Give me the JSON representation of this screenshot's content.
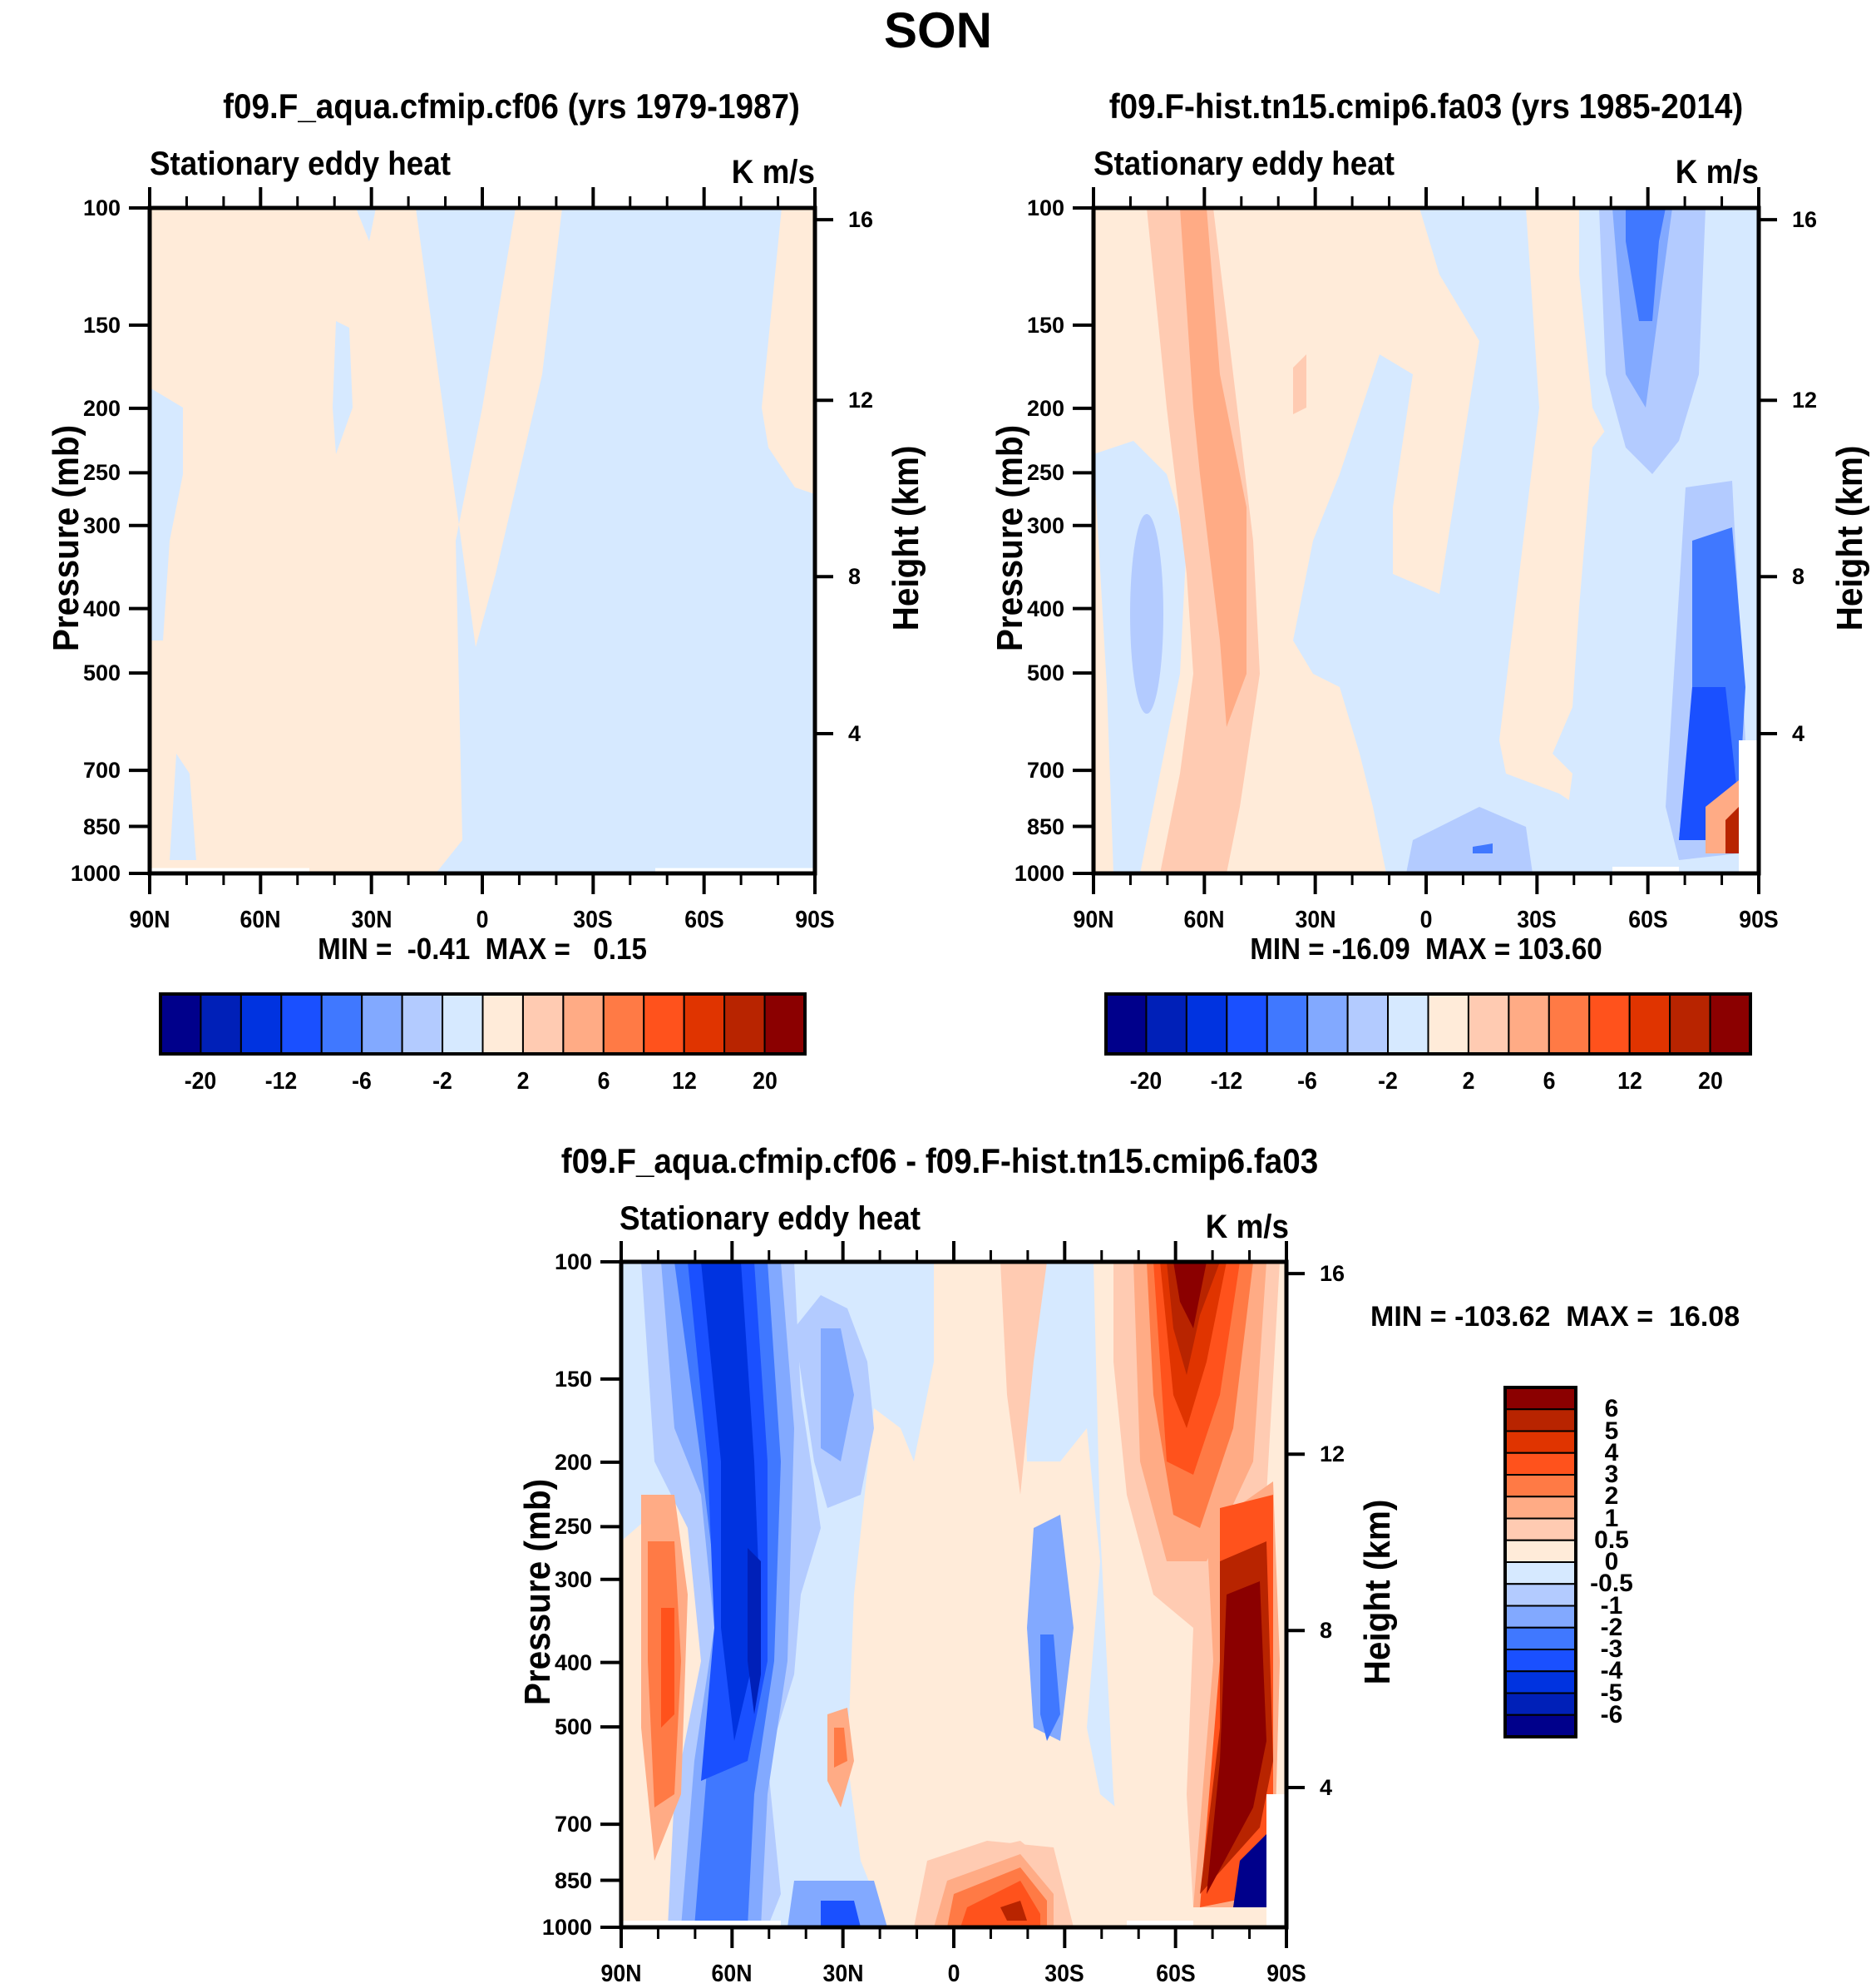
{
  "figure_title": "SON",
  "panels": [
    {
      "id": "control",
      "title": "f09.F_aqua.cfmip.cf06 (yrs 1979-1987)",
      "left_string": "Stationary eddy heat",
      "right_string": "K m/s",
      "min_max": "MIN =  -0.41  MAX =   0.15"
    },
    {
      "id": "reference",
      "title": "f09.F-hist.tn15.cmip6.fa03 (yrs 1985-2014)",
      "left_string": "Stationary eddy heat",
      "right_string": "K m/s",
      "min_max": "MIN = -16.09  MAX = 103.60"
    },
    {
      "id": "difference",
      "title": "f09.F_aqua.cfmip.cf06 - f09.F-hist.tn15.cmip6.fa03",
      "left_string": "Stationary eddy heat",
      "right_string": "K m/s",
      "min_max": "MIN = -103.62  MAX =  16.08"
    }
  ],
  "chart_data": [
    {
      "type": "heatmap",
      "title": "f09.F_aqua.cfmip.cf06 (yrs 1979-1987)",
      "subtitle_left": "Stationary eddy heat",
      "subtitle_right": "K m/s",
      "xlabel": "",
      "ylabel": "Pressure (mb)",
      "ylabel_right": "Height (km)",
      "x_ticks": [
        "90N",
        "60N",
        "30N",
        "0",
        "30S",
        "60S",
        "90S"
      ],
      "y_ticks": [
        "100",
        "150",
        "200",
        "250",
        "300",
        "400",
        "500",
        "700",
        "850",
        "1000"
      ],
      "y_ticks_right": [
        "16",
        "12",
        "8",
        "4"
      ],
      "ylim": [
        1000,
        100
      ],
      "y_scale": "log",
      "min": -0.41,
      "max": 0.15,
      "contour_levels": [
        -20,
        -16,
        -12,
        -8,
        -6,
        -4,
        -2,
        0,
        2,
        4,
        6,
        8,
        12,
        16,
        20
      ],
      "colorbar_labels": [
        "-20",
        "-12",
        "-6",
        "-2",
        "2",
        "6",
        "12",
        "20"
      ],
      "colorbar_orientation": "horizontal",
      "regions": [
        {
          "range": "0 to 2",
          "where": "90N to ~5N, nearly all levels; narrow strip at 90S above 250 mb"
        },
        {
          "range": "-2 to 0",
          "where": "equator to 90S at all levels; small patches near 90N (200-500 mb, 700-1000 mb)"
        }
      ]
    },
    {
      "type": "heatmap",
      "title": "f09.F-hist.tn15.cmip6.fa03 (yrs 1985-2014)",
      "subtitle_left": "Stationary eddy heat",
      "subtitle_right": "K m/s",
      "xlabel": "",
      "ylabel": "Pressure (mb)",
      "ylabel_right": "Height (km)",
      "x_ticks": [
        "90N",
        "60N",
        "30N",
        "0",
        "30S",
        "60S",
        "90S"
      ],
      "y_ticks": [
        "100",
        "150",
        "200",
        "250",
        "300",
        "400",
        "500",
        "700",
        "850",
        "1000"
      ],
      "y_ticks_right": [
        "16",
        "12",
        "8",
        "4"
      ],
      "ylim": [
        1000,
        100
      ],
      "y_scale": "log",
      "min": -16.09,
      "max": 103.6,
      "contour_levels": [
        -20,
        -16,
        -12,
        -8,
        -6,
        -4,
        -2,
        0,
        2,
        4,
        6,
        8,
        12,
        16,
        20
      ],
      "colorbar_labels": [
        "-20",
        "-12",
        "-6",
        "-2",
        "2",
        "6",
        "12",
        "20"
      ],
      "colorbar_orientation": "horizontal",
      "regions": [
        {
          "range": "4 to 6",
          "where": "column near 60N-50N, 100-700 mb"
        },
        {
          "range": "-8 to -6",
          "where": "60S near 100-150 mb"
        },
        {
          "range": "-12 to -8",
          "where": "75S-85S, 400-850 mb"
        },
        {
          "range": ">20",
          "where": "80S-88S near surface (850-1000 mb)"
        },
        {
          "range": "-6 to -2",
          "where": "0-20S near 1000 mb"
        }
      ]
    },
    {
      "type": "heatmap",
      "title": "f09.F_aqua.cfmip.cf06 - f09.F-hist.tn15.cmip6.fa03",
      "subtitle_left": "Stationary eddy heat",
      "subtitle_right": "K m/s",
      "xlabel": "",
      "ylabel": "Pressure (mb)",
      "ylabel_right": "Height (km)",
      "x_ticks": [
        "90N",
        "60N",
        "30N",
        "0",
        "30S",
        "60S",
        "90S"
      ],
      "y_ticks": [
        "100",
        "150",
        "200",
        "250",
        "300",
        "400",
        "500",
        "700",
        "850",
        "1000"
      ],
      "y_ticks_right": [
        "16",
        "12",
        "8",
        "4"
      ],
      "ylim": [
        1000,
        100
      ],
      "y_scale": "log",
      "min": -103.62,
      "max": 16.08,
      "contour_levels": [
        -6,
        -5,
        -4,
        -3,
        -2,
        -1,
        -0.5,
        0,
        0.5,
        1,
        2,
        3,
        4,
        5,
        6
      ],
      "colorbar_labels": [
        "6",
        "5",
        "4",
        "3",
        "2",
        "1",
        "0.5",
        "0",
        "-0.5",
        "-1",
        "-2",
        "-3",
        "-4",
        "-5",
        "-6"
      ],
      "colorbar_orientation": "vertical",
      "regions": [
        {
          "range": "-6 to -4",
          "where": "column near 60N-50N, 100-1000 mb"
        },
        {
          "range": "2 to 3",
          "where": "80N-70N, 300-600 mb"
        },
        {
          "range": ">6",
          "where": "65S-55S near 100 mb; 80S-88S from 300-850 mb"
        },
        {
          "range": "4 to 6",
          "where": "0-30S near 1000 mb"
        },
        {
          "range": "<-6",
          "where": "85S-88S near 850-1000 mb"
        }
      ]
    }
  ],
  "colormap": {
    "colors": [
      "#00008b",
      "#0020b8",
      "#0033e0",
      "#1a50ff",
      "#4078ff",
      "#82a9ff",
      "#b3cbff",
      "#d6e9ff",
      "#ffebd9",
      "#ffcbb2",
      "#ffab85",
      "#ff7a45",
      "#ff521c",
      "#e03400",
      "#b82400",
      "#8b0000"
    ]
  }
}
